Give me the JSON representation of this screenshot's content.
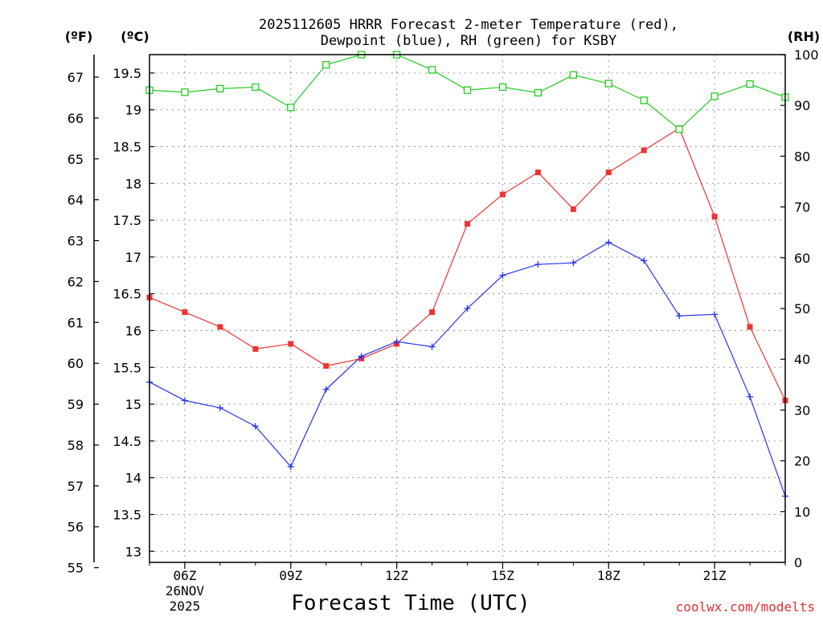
{
  "chart_data": {
    "type": "line",
    "title_line1": "2025112605 HRRR Forecast 2-meter Temperature (red),",
    "title_line2": "Dewpoint (blue), RH (green) for KSBY",
    "unit_f": "(ºF)",
    "unit_c": "(ºC)",
    "unit_rh": "(RH)",
    "xlabel": "Forecast Time (UTC)",
    "watermark": "coolwx.com/modelts",
    "x_hours": [
      5,
      6,
      7,
      8,
      9,
      10,
      11,
      12,
      13,
      14,
      15,
      16,
      17,
      18,
      19,
      20,
      21,
      22,
      23
    ],
    "x_range": [
      5,
      23
    ],
    "x_ticks": [
      {
        "hour": 6,
        "label": "06Z",
        "sub1": "26NOV",
        "sub2": "2025"
      },
      {
        "hour": 9,
        "label": "09Z"
      },
      {
        "hour": 12,
        "label": "12Z"
      },
      {
        "hour": 15,
        "label": "15Z"
      },
      {
        "hour": 18,
        "label": "18Z"
      },
      {
        "hour": 21,
        "label": "21Z"
      }
    ],
    "celsius_range": [
      12.85,
      19.75
    ],
    "celsius_ticks": [
      "13",
      "13.5",
      "14",
      "14.5",
      "15",
      "15.5",
      "16",
      "16.5",
      "17",
      "17.5",
      "18",
      "18.5",
      "19",
      "19.5"
    ],
    "fahrenheit_ticks": [
      "55",
      "56",
      "57",
      "58",
      "59",
      "60",
      "61",
      "62",
      "63",
      "64",
      "65",
      "66",
      "67"
    ],
    "rh_range": [
      0,
      100
    ],
    "rh_ticks": [
      "0",
      "10",
      "20",
      "30",
      "40",
      "50",
      "60",
      "70",
      "80",
      "90",
      "100"
    ],
    "series": [
      {
        "name": "Temperature",
        "color": "#ee3333",
        "marker": "square",
        "values": [
          16.45,
          16.25,
          16.05,
          15.75,
          15.82,
          15.52,
          15.62,
          15.82,
          16.25,
          17.45,
          17.85,
          18.15,
          17.65,
          18.15,
          18.45,
          18.75,
          17.55,
          16.05,
          15.05
        ]
      },
      {
        "name": "Dewpoint",
        "color": "#2233ee",
        "marker": "plus",
        "values": [
          15.3,
          15.05,
          14.95,
          14.7,
          14.15,
          15.2,
          15.65,
          15.85,
          15.78,
          16.3,
          16.75,
          16.9,
          16.92,
          17.2,
          16.95,
          16.2,
          16.22,
          15.1,
          13.75
        ]
      },
      {
        "name": "RH",
        "color": "#22cc22",
        "marker": "open-square",
        "values": [
          93,
          92.6,
          93.3,
          93.6,
          89.6,
          98,
          100,
          100,
          97,
          93,
          93.6,
          92.5,
          96,
          94.3,
          91,
          85.3,
          91.8,
          94.2,
          91.6
        ]
      }
    ]
  }
}
